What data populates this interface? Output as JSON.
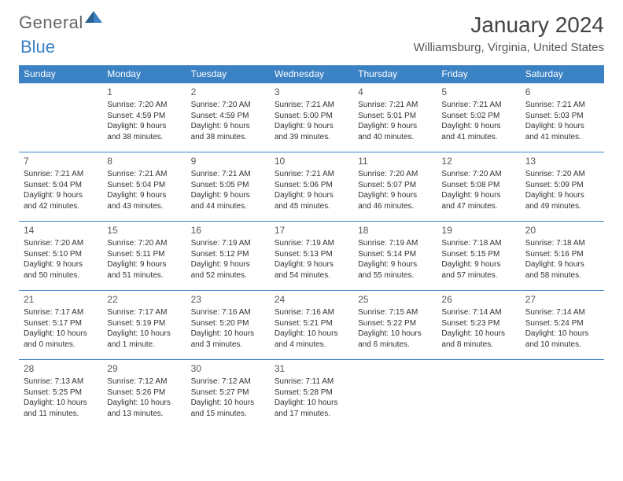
{
  "logo": {
    "word1": "General",
    "word2": "Blue"
  },
  "title": "January 2024",
  "location": "Williamsburg, Virginia, United States",
  "colors": {
    "header_bg": "#3b82c4",
    "header_text": "#ffffff",
    "row_border": "#3b82c4",
    "text": "#333333",
    "title_text": "#444444",
    "location_text": "#555555"
  },
  "day_headers": [
    "Sunday",
    "Monday",
    "Tuesday",
    "Wednesday",
    "Thursday",
    "Friday",
    "Saturday"
  ],
  "weeks": [
    [
      {
        "num": "",
        "sunrise": "",
        "sunset": "",
        "daylight": ""
      },
      {
        "num": "1",
        "sunrise": "Sunrise: 7:20 AM",
        "sunset": "Sunset: 4:59 PM",
        "daylight": "Daylight: 9 hours and 38 minutes."
      },
      {
        "num": "2",
        "sunrise": "Sunrise: 7:20 AM",
        "sunset": "Sunset: 4:59 PM",
        "daylight": "Daylight: 9 hours and 38 minutes."
      },
      {
        "num": "3",
        "sunrise": "Sunrise: 7:21 AM",
        "sunset": "Sunset: 5:00 PM",
        "daylight": "Daylight: 9 hours and 39 minutes."
      },
      {
        "num": "4",
        "sunrise": "Sunrise: 7:21 AM",
        "sunset": "Sunset: 5:01 PM",
        "daylight": "Daylight: 9 hours and 40 minutes."
      },
      {
        "num": "5",
        "sunrise": "Sunrise: 7:21 AM",
        "sunset": "Sunset: 5:02 PM",
        "daylight": "Daylight: 9 hours and 41 minutes."
      },
      {
        "num": "6",
        "sunrise": "Sunrise: 7:21 AM",
        "sunset": "Sunset: 5:03 PM",
        "daylight": "Daylight: 9 hours and 41 minutes."
      }
    ],
    [
      {
        "num": "7",
        "sunrise": "Sunrise: 7:21 AM",
        "sunset": "Sunset: 5:04 PM",
        "daylight": "Daylight: 9 hours and 42 minutes."
      },
      {
        "num": "8",
        "sunrise": "Sunrise: 7:21 AM",
        "sunset": "Sunset: 5:04 PM",
        "daylight": "Daylight: 9 hours and 43 minutes."
      },
      {
        "num": "9",
        "sunrise": "Sunrise: 7:21 AM",
        "sunset": "Sunset: 5:05 PM",
        "daylight": "Daylight: 9 hours and 44 minutes."
      },
      {
        "num": "10",
        "sunrise": "Sunrise: 7:21 AM",
        "sunset": "Sunset: 5:06 PM",
        "daylight": "Daylight: 9 hours and 45 minutes."
      },
      {
        "num": "11",
        "sunrise": "Sunrise: 7:20 AM",
        "sunset": "Sunset: 5:07 PM",
        "daylight": "Daylight: 9 hours and 46 minutes."
      },
      {
        "num": "12",
        "sunrise": "Sunrise: 7:20 AM",
        "sunset": "Sunset: 5:08 PM",
        "daylight": "Daylight: 9 hours and 47 minutes."
      },
      {
        "num": "13",
        "sunrise": "Sunrise: 7:20 AM",
        "sunset": "Sunset: 5:09 PM",
        "daylight": "Daylight: 9 hours and 49 minutes."
      }
    ],
    [
      {
        "num": "14",
        "sunrise": "Sunrise: 7:20 AM",
        "sunset": "Sunset: 5:10 PM",
        "daylight": "Daylight: 9 hours and 50 minutes."
      },
      {
        "num": "15",
        "sunrise": "Sunrise: 7:20 AM",
        "sunset": "Sunset: 5:11 PM",
        "daylight": "Daylight: 9 hours and 51 minutes."
      },
      {
        "num": "16",
        "sunrise": "Sunrise: 7:19 AM",
        "sunset": "Sunset: 5:12 PM",
        "daylight": "Daylight: 9 hours and 52 minutes."
      },
      {
        "num": "17",
        "sunrise": "Sunrise: 7:19 AM",
        "sunset": "Sunset: 5:13 PM",
        "daylight": "Daylight: 9 hours and 54 minutes."
      },
      {
        "num": "18",
        "sunrise": "Sunrise: 7:19 AM",
        "sunset": "Sunset: 5:14 PM",
        "daylight": "Daylight: 9 hours and 55 minutes."
      },
      {
        "num": "19",
        "sunrise": "Sunrise: 7:18 AM",
        "sunset": "Sunset: 5:15 PM",
        "daylight": "Daylight: 9 hours and 57 minutes."
      },
      {
        "num": "20",
        "sunrise": "Sunrise: 7:18 AM",
        "sunset": "Sunset: 5:16 PM",
        "daylight": "Daylight: 9 hours and 58 minutes."
      }
    ],
    [
      {
        "num": "21",
        "sunrise": "Sunrise: 7:17 AM",
        "sunset": "Sunset: 5:17 PM",
        "daylight": "Daylight: 10 hours and 0 minutes."
      },
      {
        "num": "22",
        "sunrise": "Sunrise: 7:17 AM",
        "sunset": "Sunset: 5:19 PM",
        "daylight": "Daylight: 10 hours and 1 minute."
      },
      {
        "num": "23",
        "sunrise": "Sunrise: 7:16 AM",
        "sunset": "Sunset: 5:20 PM",
        "daylight": "Daylight: 10 hours and 3 minutes."
      },
      {
        "num": "24",
        "sunrise": "Sunrise: 7:16 AM",
        "sunset": "Sunset: 5:21 PM",
        "daylight": "Daylight: 10 hours and 4 minutes."
      },
      {
        "num": "25",
        "sunrise": "Sunrise: 7:15 AM",
        "sunset": "Sunset: 5:22 PM",
        "daylight": "Daylight: 10 hours and 6 minutes."
      },
      {
        "num": "26",
        "sunrise": "Sunrise: 7:14 AM",
        "sunset": "Sunset: 5:23 PM",
        "daylight": "Daylight: 10 hours and 8 minutes."
      },
      {
        "num": "27",
        "sunrise": "Sunrise: 7:14 AM",
        "sunset": "Sunset: 5:24 PM",
        "daylight": "Daylight: 10 hours and 10 minutes."
      }
    ],
    [
      {
        "num": "28",
        "sunrise": "Sunrise: 7:13 AM",
        "sunset": "Sunset: 5:25 PM",
        "daylight": "Daylight: 10 hours and 11 minutes."
      },
      {
        "num": "29",
        "sunrise": "Sunrise: 7:12 AM",
        "sunset": "Sunset: 5:26 PM",
        "daylight": "Daylight: 10 hours and 13 minutes."
      },
      {
        "num": "30",
        "sunrise": "Sunrise: 7:12 AM",
        "sunset": "Sunset: 5:27 PM",
        "daylight": "Daylight: 10 hours and 15 minutes."
      },
      {
        "num": "31",
        "sunrise": "Sunrise: 7:11 AM",
        "sunset": "Sunset: 5:28 PM",
        "daylight": "Daylight: 10 hours and 17 minutes."
      },
      {
        "num": "",
        "sunrise": "",
        "sunset": "",
        "daylight": ""
      },
      {
        "num": "",
        "sunrise": "",
        "sunset": "",
        "daylight": ""
      },
      {
        "num": "",
        "sunrise": "",
        "sunset": "",
        "daylight": ""
      }
    ]
  ]
}
